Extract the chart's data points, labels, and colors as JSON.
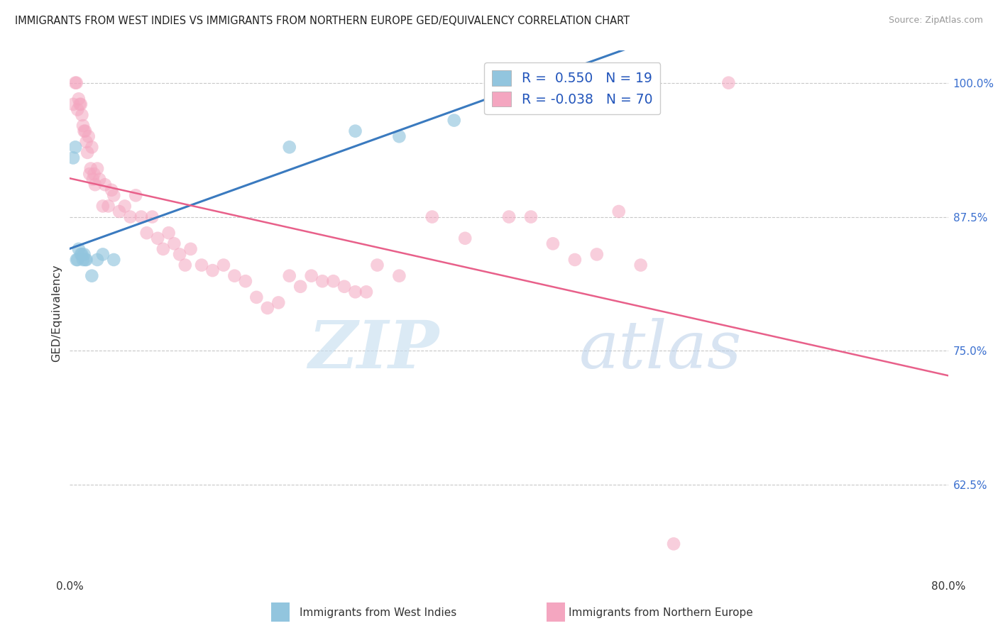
{
  "title": "IMMIGRANTS FROM WEST INDIES VS IMMIGRANTS FROM NORTHERN EUROPE GED/EQUIVALENCY CORRELATION CHART",
  "source": "Source: ZipAtlas.com",
  "ylabel": "GED/Equivalency",
  "legend_label_blue": "Immigrants from West Indies",
  "legend_label_pink": "Immigrants from Northern Europe",
  "R_blue": 0.55,
  "N_blue": 19,
  "R_pink": -0.038,
  "N_pink": 70,
  "xlim": [
    0,
    80
  ],
  "ylim": [
    54,
    103
  ],
  "color_blue": "#92c5de",
  "color_pink": "#f4a6c0",
  "trendline_blue": "#3a7abf",
  "trendline_pink": "#e8608a",
  "watermark_zip": "ZIP",
  "watermark_atlas": "atlas",
  "blue_x": [
    0.3,
    0.5,
    0.6,
    0.7,
    0.8,
    1.0,
    1.1,
    1.2,
    1.3,
    1.4,
    1.5,
    2.0,
    2.5,
    3.0,
    4.0,
    20.0,
    26.0,
    30.0,
    35.0
  ],
  "blue_y": [
    93.0,
    94.0,
    83.5,
    83.5,
    84.5,
    84.0,
    84.0,
    83.5,
    84.0,
    83.5,
    83.5,
    82.0,
    83.5,
    84.0,
    83.5,
    94.0,
    95.5,
    95.0,
    96.5
  ],
  "pink_x": [
    0.3,
    0.5,
    0.6,
    0.7,
    0.8,
    0.9,
    1.0,
    1.1,
    1.2,
    1.3,
    1.4,
    1.5,
    1.6,
    1.7,
    1.8,
    1.9,
    2.0,
    2.1,
    2.2,
    2.3,
    2.5,
    2.7,
    3.0,
    3.2,
    3.5,
    3.8,
    4.0,
    4.5,
    5.0,
    5.5,
    6.0,
    6.5,
    7.0,
    7.5,
    8.0,
    8.5,
    9.0,
    9.5,
    10.0,
    10.5,
    11.0,
    12.0,
    13.0,
    14.0,
    15.0,
    16.0,
    17.0,
    18.0,
    19.0,
    20.0,
    21.0,
    22.0,
    23.0,
    24.0,
    25.0,
    26.0,
    27.0,
    28.0,
    30.0,
    33.0,
    36.0,
    40.0,
    42.0,
    44.0,
    46.0,
    48.0,
    50.0,
    52.0,
    55.0,
    60.0
  ],
  "pink_y": [
    98.0,
    100.0,
    100.0,
    97.5,
    98.5,
    98.0,
    98.0,
    97.0,
    96.0,
    95.5,
    95.5,
    94.5,
    93.5,
    95.0,
    91.5,
    92.0,
    94.0,
    91.0,
    91.5,
    90.5,
    92.0,
    91.0,
    88.5,
    90.5,
    88.5,
    90.0,
    89.5,
    88.0,
    88.5,
    87.5,
    89.5,
    87.5,
    86.0,
    87.5,
    85.5,
    84.5,
    86.0,
    85.0,
    84.0,
    83.0,
    84.5,
    83.0,
    82.5,
    83.0,
    82.0,
    81.5,
    80.0,
    79.0,
    79.5,
    82.0,
    81.0,
    82.0,
    81.5,
    81.5,
    81.0,
    80.5,
    80.5,
    83.0,
    82.0,
    87.5,
    85.5,
    87.5,
    87.5,
    85.0,
    83.5,
    84.0,
    88.0,
    83.0,
    57.0,
    100.0
  ]
}
